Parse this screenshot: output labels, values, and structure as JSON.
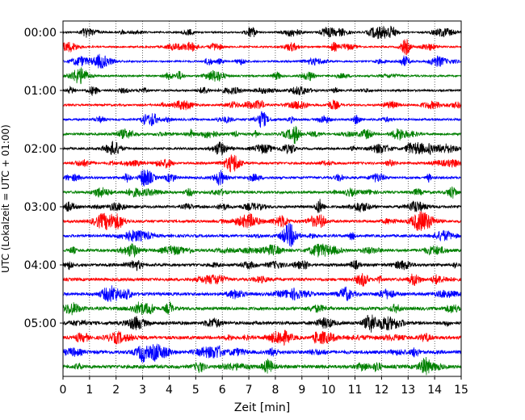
{
  "chart_data": {
    "type": "line",
    "title": "",
    "xlabel": "Zeit  [min]",
    "ylabel": "UTC (Lokalzeit = UTC + 01:00)",
    "xlim": [
      0,
      15
    ],
    "x_ticks": [
      0,
      1,
      2,
      3,
      4,
      5,
      6,
      7,
      8,
      9,
      10,
      11,
      12,
      13,
      14,
      15
    ],
    "y_tick_labels": [
      "00:00",
      "01:00",
      "02:00",
      "03:00",
      "04:00",
      "05:00"
    ],
    "rows_per_label": 4,
    "row_count": 24,
    "trace_colors": [
      "#000000",
      "#ff0000",
      "#0000ff",
      "#008000"
    ],
    "grid": "vertical dotted",
    "legend": "none"
  }
}
